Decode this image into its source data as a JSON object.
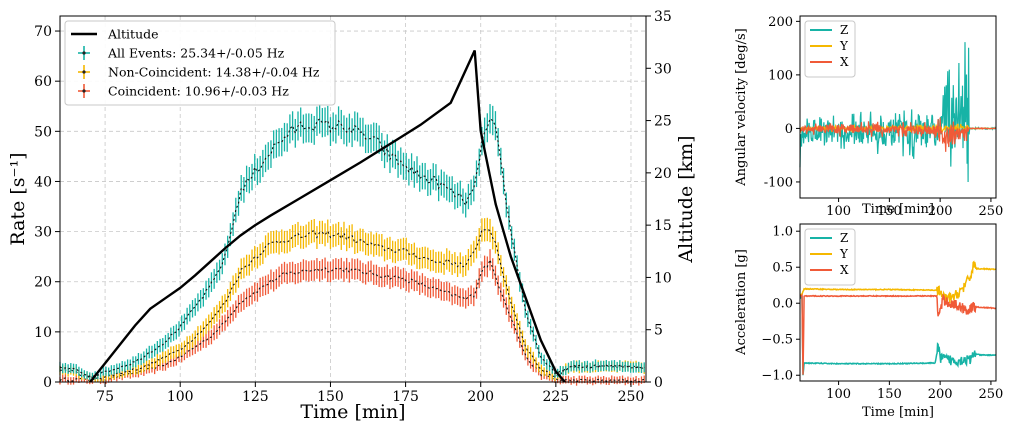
{
  "chart_data": [
    {
      "type": "line",
      "xlabel": "Time [min]",
      "ylabel": "Rate [s⁻¹]",
      "ylabel_right": "Altitude [km]",
      "xlim": [
        60,
        255
      ],
      "ylim": [
        0,
        73
      ],
      "ylim_right": [
        0,
        35
      ],
      "xticks": [
        75,
        100,
        125,
        150,
        175,
        200,
        225,
        250
      ],
      "yticks": [
        0,
        10,
        20,
        30,
        40,
        50,
        60,
        70
      ],
      "yticks_right": [
        0,
        5,
        10,
        15,
        20,
        25,
        30,
        35
      ],
      "grid": true,
      "legend_position": "top-left",
      "series": [
        {
          "name": "Altitude",
          "axis": "right",
          "color": "#000000",
          "points": [
            [
              70,
              0
            ],
            [
              75,
              1.8
            ],
            [
              80,
              3.6
            ],
            [
              85,
              5.4
            ],
            [
              90,
              7
            ],
            [
              95,
              8
            ],
            [
              100,
              9
            ],
            [
              105,
              10.2
            ],
            [
              110,
              11.5
            ],
            [
              115,
              12.8
            ],
            [
              120,
              14
            ],
            [
              125,
              15
            ],
            [
              130,
              15.9
            ],
            [
              140,
              17.6
            ],
            [
              150,
              19.3
            ],
            [
              160,
              21
            ],
            [
              170,
              22.8
            ],
            [
              180,
              24.6
            ],
            [
              190,
              26.7
            ],
            [
              198,
              31.7
            ],
            [
              200,
              24
            ],
            [
              205,
              17
            ],
            [
              210,
              12
            ],
            [
              215,
              8
            ],
            [
              220,
              4
            ],
            [
              225,
              1
            ],
            [
              228,
              0
            ]
          ]
        },
        {
          "name": "All Events: 25.34+/-0.05 Hz",
          "color": "#17b3a6",
          "points": [
            [
              60,
              2.8
            ],
            [
              65,
              2.5
            ],
            [
              70,
              1.2
            ],
            [
              75,
              2
            ],
            [
              80,
              3
            ],
            [
              85,
              4
            ],
            [
              90,
              6
            ],
            [
              95,
              8
            ],
            [
              100,
              11
            ],
            [
              105,
              15
            ],
            [
              110,
              19
            ],
            [
              115,
              25
            ],
            [
              120,
              38
            ],
            [
              125,
              42
            ],
            [
              130,
              46
            ],
            [
              135,
              49
            ],
            [
              140,
              51
            ],
            [
              145,
              51.5
            ],
            [
              150,
              51
            ],
            [
              155,
              51
            ],
            [
              160,
              49.5
            ],
            [
              165,
              48
            ],
            [
              170,
              45
            ],
            [
              175,
              43
            ],
            [
              180,
              41
            ],
            [
              185,
              40
            ],
            [
              190,
              38
            ],
            [
              195,
              36
            ],
            [
              198,
              38
            ],
            [
              200,
              47
            ],
            [
              203,
              52
            ],
            [
              205,
              50
            ],
            [
              210,
              30
            ],
            [
              215,
              14
            ],
            [
              220,
              5
            ],
            [
              225,
              1.5
            ],
            [
              228,
              2.5
            ],
            [
              230,
              3
            ],
            [
              240,
              3.2
            ],
            [
              250,
              3
            ],
            [
              255,
              3
            ]
          ]
        },
        {
          "name": "Non-Coincident:  14.38+/-0.04 Hz",
          "color": "#f5b800",
          "points": [
            [
              60,
              2.5
            ],
            [
              65,
              2
            ],
            [
              70,
              0.8
            ],
            [
              75,
              1
            ],
            [
              80,
              1.8
            ],
            [
              85,
              2.5
            ],
            [
              90,
              3.5
            ],
            [
              95,
              5
            ],
            [
              100,
              6.5
            ],
            [
              105,
              9
            ],
            [
              110,
              12
            ],
            [
              115,
              16
            ],
            [
              120,
              22
            ],
            [
              125,
              25
            ],
            [
              130,
              27.5
            ],
            [
              135,
              28.5
            ],
            [
              140,
              29
            ],
            [
              145,
              29.5
            ],
            [
              150,
              29.5
            ],
            [
              155,
              29
            ],
            [
              160,
              28
            ],
            [
              165,
              27
            ],
            [
              170,
              26.5
            ],
            [
              175,
              26
            ],
            [
              180,
              25
            ],
            [
              185,
              24
            ],
            [
              190,
              24
            ],
            [
              195,
              23
            ],
            [
              198,
              26
            ],
            [
              200,
              30
            ],
            [
              203,
              31
            ],
            [
              205,
              27
            ],
            [
              210,
              16
            ],
            [
              215,
              7
            ],
            [
              220,
              2.5
            ],
            [
              225,
              1
            ],
            [
              228,
              2.5
            ],
            [
              230,
              3
            ],
            [
              240,
              3
            ],
            [
              250,
              3
            ],
            [
              255,
              2.8
            ]
          ]
        },
        {
          "name": "Coincident:  10.96+/-0.03 Hz",
          "color": "#f05a38",
          "points": [
            [
              60,
              0.5
            ],
            [
              70,
              0.5
            ],
            [
              75,
              0.6
            ],
            [
              80,
              1.2
            ],
            [
              85,
              1.8
            ],
            [
              90,
              2.5
            ],
            [
              95,
              3.5
            ],
            [
              100,
              5
            ],
            [
              105,
              7
            ],
            [
              110,
              9
            ],
            [
              115,
              12
            ],
            [
              120,
              16
            ],
            [
              125,
              18
            ],
            [
              130,
              20
            ],
            [
              135,
              21.5
            ],
            [
              140,
              22
            ],
            [
              145,
              22.5
            ],
            [
              150,
              22.5
            ],
            [
              155,
              22.5
            ],
            [
              160,
              22
            ],
            [
              165,
              21.5
            ],
            [
              170,
              21
            ],
            [
              175,
              20.5
            ],
            [
              180,
              19.5
            ],
            [
              185,
              18.5
            ],
            [
              190,
              17.5
            ],
            [
              195,
              16.5
            ],
            [
              198,
              17.5
            ],
            [
              200,
              22
            ],
            [
              203,
              24
            ],
            [
              205,
              21
            ],
            [
              210,
              13
            ],
            [
              215,
              5
            ],
            [
              220,
              1.5
            ],
            [
              225,
              0.5
            ],
            [
              230,
              0.3
            ],
            [
              255,
              0.3
            ]
          ]
        }
      ]
    },
    {
      "type": "line",
      "xlabel": "Time [min]",
      "ylabel": "Angular velocity [deg/s]",
      "xlim": [
        62,
        255
      ],
      "ylim": [
        -130,
        210
      ],
      "xticks": [
        100,
        150,
        200,
        250
      ],
      "yticks": [
        -100,
        0,
        100,
        200
      ],
      "grid": false,
      "legend_position": "top-left",
      "series": [
        {
          "name": "Z",
          "color": "#17b3a6",
          "points": []
        },
        {
          "name": "Y",
          "color": "#f5b800",
          "points": []
        },
        {
          "name": "X",
          "color": "#f05a38",
          "points": []
        }
      ]
    },
    {
      "type": "line",
      "xlabel": "Time [min]",
      "ylabel": "Acceleration [g]",
      "xlim": [
        62,
        255
      ],
      "ylim": [
        -1.08,
        1.1
      ],
      "xticks": [
        100,
        150,
        200,
        250
      ],
      "yticks": [
        -1.0,
        -0.5,
        0.0,
        0.5,
        1.0
      ],
      "ytick_labels": [
        "−1.0",
        "−0.5",
        "0.0",
        "0.5",
        "1.0"
      ],
      "grid": false,
      "legend_position": "top-left",
      "series": [
        {
          "name": "Z",
          "color": "#17b3a6",
          "points": [
            [
              62,
              0.08
            ],
            [
              64,
              0.08
            ],
            [
              65,
              -1.0
            ],
            [
              66,
              -0.83
            ],
            [
              100,
              -0.84
            ],
            [
              150,
              -0.84
            ],
            [
              195,
              -0.83
            ],
            [
              198,
              -0.6
            ],
            [
              200,
              -0.75
            ],
            [
              205,
              -0.78
            ],
            [
              215,
              -0.8
            ],
            [
              225,
              -0.78
            ],
            [
              230,
              -0.8
            ],
            [
              233,
              -0.7
            ],
            [
              240,
              -0.72
            ],
            [
              255,
              -0.72
            ]
          ]
        },
        {
          "name": "Y",
          "color": "#f5b800",
          "points": [
            [
              62,
              0.12
            ],
            [
              64,
              0.12
            ],
            [
              66,
              0.2
            ],
            [
              100,
              0.19
            ],
            [
              150,
              0.19
            ],
            [
              198,
              0.18
            ],
            [
              205,
              0.05
            ],
            [
              215,
              0.1
            ],
            [
              225,
              0.25
            ],
            [
              230,
              0.38
            ],
            [
              233,
              0.55
            ],
            [
              236,
              0.48
            ],
            [
              255,
              0.47
            ]
          ]
        },
        {
          "name": "X",
          "color": "#f05a38",
          "points": [
            [
              62,
              0.1
            ],
            [
              64,
              0.1
            ],
            [
              65,
              -1.0
            ],
            [
              66,
              0.1
            ],
            [
              100,
              0.1
            ],
            [
              150,
              0.1
            ],
            [
              197,
              0.1
            ],
            [
              198,
              -0.2
            ],
            [
              203,
              0.05
            ],
            [
              210,
              0.0
            ],
            [
              220,
              -0.05
            ],
            [
              228,
              -0.1
            ],
            [
              233,
              -0.05
            ],
            [
              255,
              -0.07
            ]
          ]
        }
      ]
    }
  ]
}
